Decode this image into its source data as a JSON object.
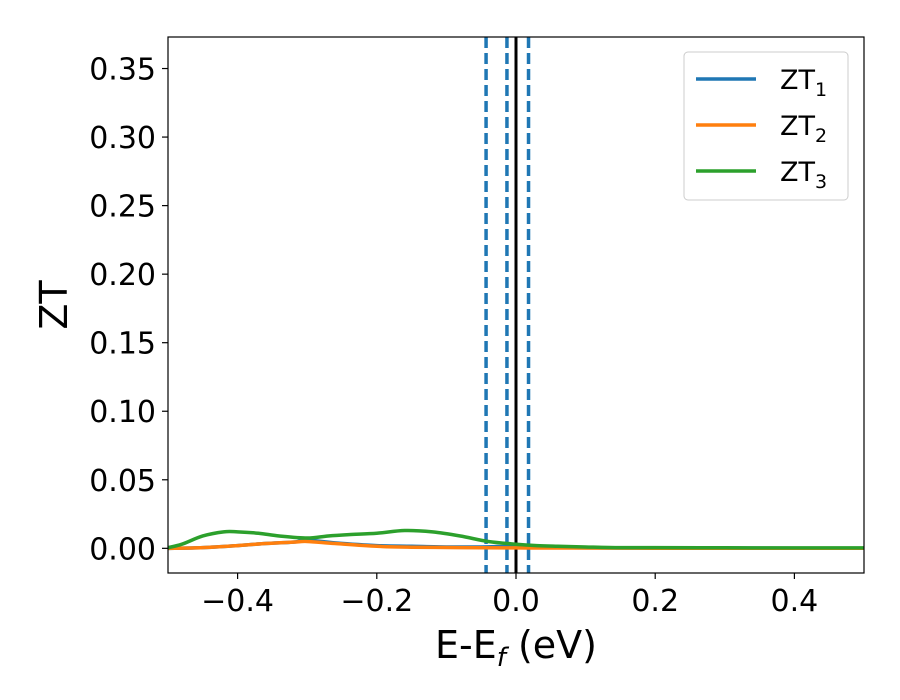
{
  "chart_data": {
    "type": "line",
    "xlabel": {
      "main": "E-E",
      "sub": "f",
      "unit": " (eV)"
    },
    "ylabel": "ZT",
    "xlim": [
      -0.5,
      0.5
    ],
    "ylim": [
      -0.018,
      0.373
    ],
    "xticks": [
      -0.4,
      -0.2,
      0.0,
      0.2,
      0.4
    ],
    "xtick_labels": [
      "−0.4",
      "−0.2",
      "0.0",
      "0.2",
      "0.4"
    ],
    "yticks": [
      0.0,
      0.05,
      0.1,
      0.15,
      0.2,
      0.25,
      0.3,
      0.35
    ],
    "ytick_labels": [
      "0.00",
      "0.05",
      "0.10",
      "0.15",
      "0.20",
      "0.25",
      "0.30",
      "0.35"
    ],
    "grid": false,
    "legend_position": "top-right",
    "series": [
      {
        "name": "ZT",
        "subscript": "1",
        "color": "#1f77b4",
        "x": [
          -0.5,
          -0.45,
          -0.4,
          -0.36,
          -0.32,
          -0.3,
          -0.26,
          -0.2,
          -0.15,
          -0.1,
          -0.05,
          0.0,
          0.05,
          0.1,
          0.2,
          0.3,
          0.4,
          0.5
        ],
        "y": [
          0.0,
          0.0005,
          0.002,
          0.0035,
          0.0045,
          0.006,
          0.004,
          0.002,
          0.0015,
          0.001,
          0.001,
          0.0015,
          0.0008,
          0.0003,
          0.0002,
          0.0002,
          0.0001,
          0.0001
        ]
      },
      {
        "name": "ZT",
        "subscript": "2",
        "color": "#ff7f0e",
        "x": [
          -0.5,
          -0.45,
          -0.4,
          -0.36,
          -0.32,
          -0.3,
          -0.26,
          -0.2,
          -0.15,
          -0.1,
          -0.05,
          0.0,
          0.05,
          0.1,
          0.2,
          0.3,
          0.4,
          0.5
        ],
        "y": [
          0.0,
          0.0005,
          0.002,
          0.0035,
          0.0045,
          0.005,
          0.0035,
          0.0015,
          0.0008,
          0.0006,
          0.0004,
          0.0003,
          0.0002,
          0.0002,
          0.0001,
          0.0001,
          0.0001,
          0.0001
        ]
      },
      {
        "name": "ZT",
        "subscript": "3",
        "color": "#2ca02c",
        "x": [
          -0.5,
          -0.48,
          -0.45,
          -0.42,
          -0.4,
          -0.37,
          -0.34,
          -0.3,
          -0.27,
          -0.24,
          -0.2,
          -0.16,
          -0.12,
          -0.08,
          -0.04,
          0.0,
          0.03,
          0.06,
          0.1,
          0.15,
          0.2,
          0.3,
          0.4,
          0.5
        ],
        "y": [
          0.0005,
          0.003,
          0.009,
          0.012,
          0.012,
          0.011,
          0.009,
          0.0075,
          0.009,
          0.01,
          0.011,
          0.013,
          0.012,
          0.009,
          0.005,
          0.003,
          0.002,
          0.0015,
          0.001,
          0.0005,
          0.0005,
          0.0004,
          0.0003,
          0.0003
        ]
      }
    ],
    "vlines": [
      {
        "x": -0.043,
        "style": "dashed",
        "color": "#1f77b4"
      },
      {
        "x": -0.013,
        "style": "dashed",
        "color": "#1f77b4"
      },
      {
        "x": 0.018,
        "style": "dashed",
        "color": "#1f77b4"
      },
      {
        "x": 0.0,
        "style": "solid",
        "color": "#000000"
      }
    ]
  }
}
